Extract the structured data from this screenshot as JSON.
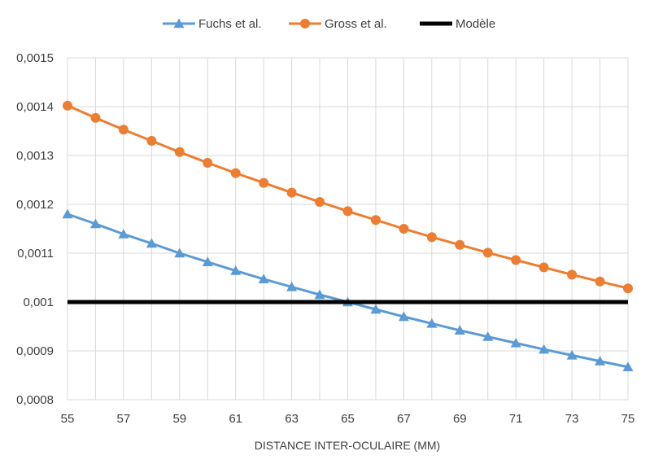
{
  "chart_data": {
    "type": "line",
    "xlabel": "DISTANCE INTER-OCULAIRE (MM)",
    "ylabel": "",
    "x": [
      55,
      56,
      57,
      58,
      59,
      60,
      61,
      62,
      63,
      64,
      65,
      66,
      67,
      68,
      69,
      70,
      71,
      72,
      73,
      74,
      75
    ],
    "xlim": [
      55,
      75
    ],
    "ylim": [
      0.0008,
      0.0015
    ],
    "x_ticks": [
      "55",
      "57",
      "59",
      "61",
      "63",
      "65",
      "67",
      "69",
      "71",
      "73",
      "75"
    ],
    "y_ticks": [
      "0,0015",
      "0,0014",
      "0,0013",
      "0,0012",
      "0,0011",
      "0,001",
      "0,0009",
      "0,0008"
    ],
    "grid": true,
    "legend_position": "top",
    "series": [
      {
        "name": "Fuchs et al.",
        "color": "#5B9BD5",
        "marker": "triangle",
        "values": [
          0.00118,
          0.00116,
          0.001139,
          0.00112,
          0.0011,
          0.001082,
          0.001064,
          0.001047,
          0.001031,
          0.001015,
          0.001,
          0.000985,
          0.00097,
          0.000956,
          0.000942,
          0.000929,
          0.000916,
          0.000903,
          0.000891,
          0.000879,
          0.000867
        ]
      },
      {
        "name": "Gross et al.",
        "color": "#ED7D31",
        "marker": "circle",
        "values": [
          0.001402,
          0.001377,
          0.001353,
          0.00133,
          0.001307,
          0.001285,
          0.001264,
          0.001244,
          0.001224,
          0.001205,
          0.001186,
          0.001168,
          0.00115,
          0.001133,
          0.001117,
          0.001101,
          0.001086,
          0.001071,
          0.001056,
          0.001042,
          0.001028
        ]
      },
      {
        "name": "Modèle",
        "color": "#000000",
        "marker": "none",
        "values": [
          0.001,
          0.001,
          0.001,
          0.001,
          0.001,
          0.001,
          0.001,
          0.001,
          0.001,
          0.001,
          0.001,
          0.001,
          0.001,
          0.001,
          0.001,
          0.001,
          0.001,
          0.001,
          0.001,
          0.001,
          0.001
        ]
      }
    ]
  }
}
